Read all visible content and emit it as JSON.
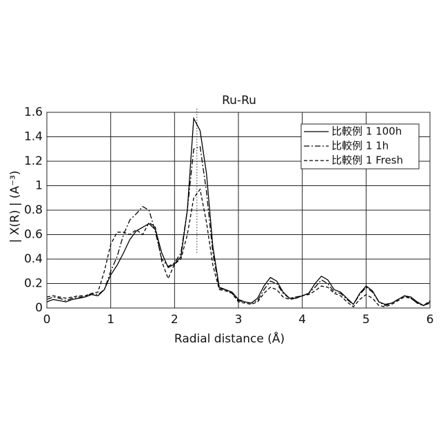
{
  "chart_data": {
    "type": "line",
    "title": "Ru-Ru",
    "xlabel": "Radial distance (Å)",
    "ylabel": "| X(R) | (A⁻³)",
    "x": [
      0,
      0.1,
      0.2,
      0.3,
      0.4,
      0.5,
      0.6,
      0.7,
      0.8,
      0.9,
      1.0,
      1.1,
      1.2,
      1.3,
      1.4,
      1.5,
      1.6,
      1.7,
      1.8,
      1.9,
      2.0,
      2.1,
      2.2,
      2.3,
      2.4,
      2.5,
      2.6,
      2.7,
      2.8,
      2.9,
      3.0,
      3.1,
      3.2,
      3.3,
      3.4,
      3.5,
      3.6,
      3.7,
      3.8,
      3.9,
      4.0,
      4.1,
      4.2,
      4.3,
      4.4,
      4.5,
      4.6,
      4.7,
      4.8,
      4.9,
      5.0,
      5.1,
      5.2,
      5.3,
      5.4,
      5.5,
      5.6,
      5.7,
      5.8,
      5.9,
      6.0
    ],
    "series": [
      {
        "name": "比較例 1 100h",
        "color": "#000000",
        "dash": "solid",
        "values": [
          0.05,
          0.07,
          0.06,
          0.05,
          0.07,
          0.08,
          0.09,
          0.11,
          0.1,
          0.15,
          0.27,
          0.35,
          0.45,
          0.56,
          0.63,
          0.66,
          0.69,
          0.64,
          0.45,
          0.33,
          0.36,
          0.42,
          0.8,
          1.55,
          1.45,
          1.1,
          0.5,
          0.17,
          0.15,
          0.13,
          0.07,
          0.05,
          0.04,
          0.08,
          0.18,
          0.25,
          0.22,
          0.13,
          0.08,
          0.08,
          0.1,
          0.12,
          0.2,
          0.26,
          0.23,
          0.15,
          0.13,
          0.08,
          0.03,
          0.12,
          0.18,
          0.14,
          0.05,
          0.03,
          0.04,
          0.07,
          0.1,
          0.09,
          0.05,
          0.02,
          0.05
        ]
      },
      {
        "name": "比較例 1 1h",
        "color": "#000000",
        "dash": "dashdot",
        "values": [
          0.07,
          0.09,
          0.08,
          0.06,
          0.08,
          0.09,
          0.09,
          0.12,
          0.11,
          0.15,
          0.3,
          0.42,
          0.6,
          0.72,
          0.77,
          0.83,
          0.8,
          0.62,
          0.4,
          0.34,
          0.37,
          0.45,
          0.8,
          1.3,
          1.32,
          0.95,
          0.45,
          0.16,
          0.15,
          0.12,
          0.06,
          0.05,
          0.04,
          0.06,
          0.15,
          0.22,
          0.2,
          0.12,
          0.08,
          0.09,
          0.1,
          0.12,
          0.17,
          0.23,
          0.2,
          0.13,
          0.12,
          0.07,
          0.03,
          0.11,
          0.17,
          0.13,
          0.05,
          0.02,
          0.04,
          0.07,
          0.1,
          0.08,
          0.04,
          0.02,
          0.06
        ]
      },
      {
        "name": "比較例 1 Fresh",
        "color": "#000000",
        "dash": "dashed",
        "values": [
          0.09,
          0.1,
          0.09,
          0.08,
          0.09,
          0.1,
          0.1,
          0.12,
          0.13,
          0.3,
          0.52,
          0.62,
          0.62,
          0.6,
          0.64,
          0.6,
          0.7,
          0.66,
          0.38,
          0.24,
          0.36,
          0.4,
          0.6,
          0.9,
          0.97,
          0.7,
          0.35,
          0.15,
          0.14,
          0.12,
          0.05,
          0.04,
          0.03,
          0.05,
          0.12,
          0.17,
          0.15,
          0.09,
          0.07,
          0.08,
          0.1,
          0.11,
          0.14,
          0.18,
          0.17,
          0.12,
          0.1,
          0.05,
          0.01,
          0.07,
          0.11,
          0.08,
          0.02,
          0.01,
          0.03,
          0.06,
          0.09,
          0.08,
          0.04,
          0.02,
          0.04
        ]
      }
    ],
    "vline": {
      "x": 2.35,
      "y": [
        0.45,
        1.63
      ]
    },
    "xlim": [
      0,
      6
    ],
    "xticks": [
      0,
      1,
      2,
      3,
      4,
      5,
      6
    ],
    "ylim": [
      0,
      1.6
    ],
    "yticks": [
      0,
      0.2,
      0.4,
      0.6,
      0.8,
      1,
      1.2,
      1.4,
      1.6
    ],
    "grid": true,
    "legend": "upper right"
  }
}
